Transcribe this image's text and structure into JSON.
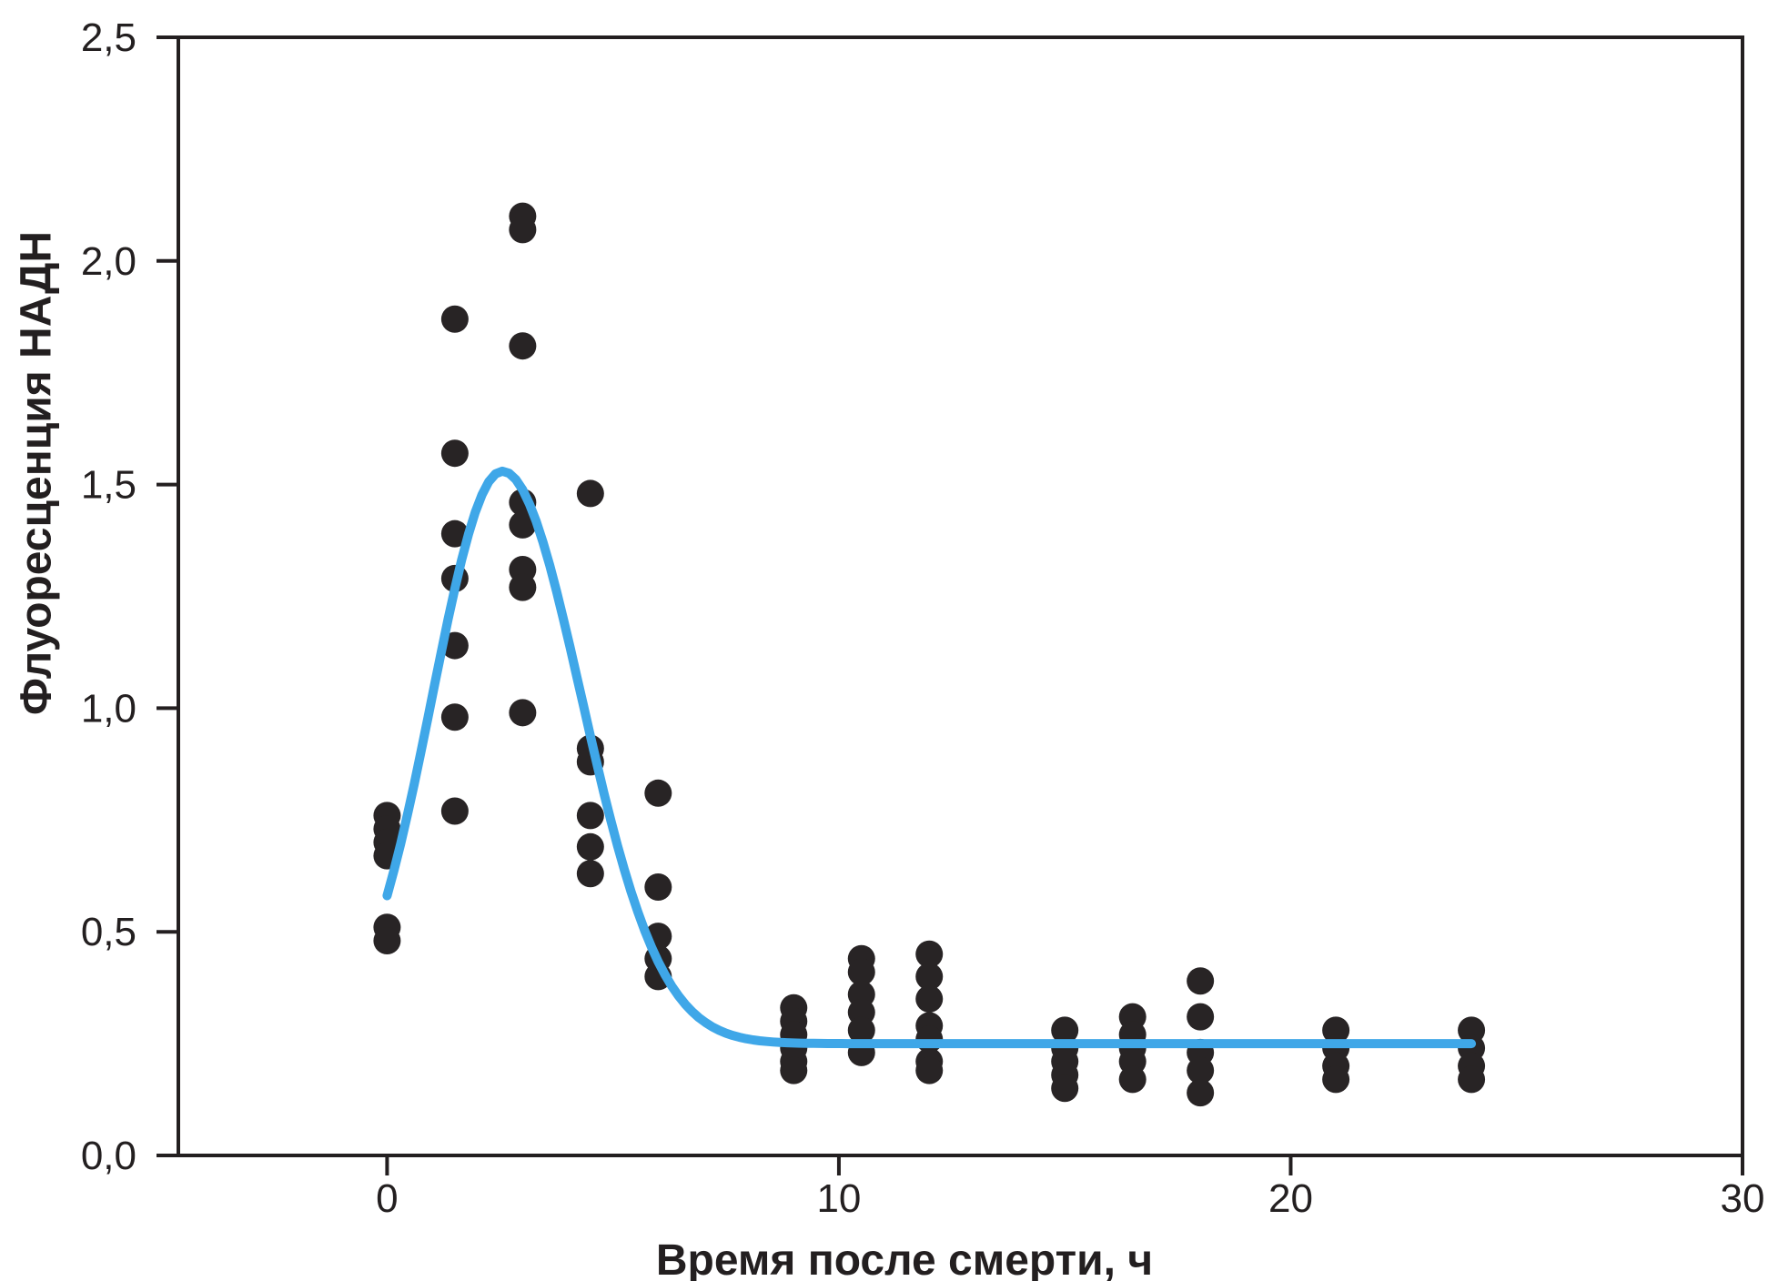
{
  "figure": {
    "background": "#ffffff",
    "colors": {
      "point": "#282425",
      "curve": "#3fa7e8",
      "axis": "#231f20",
      "text": "#231f20"
    }
  },
  "chart_data": {
    "type": "scatter",
    "title": "",
    "xlabel": "Время после смерти, ч",
    "ylabel": "Флуоресценция НАДН",
    "xlim": [
      -4.62,
      30
    ],
    "ylim": [
      0,
      2.5
    ],
    "grid": false,
    "legend": false,
    "decimal_separator": ",",
    "x_ticks": [
      {
        "v": 0,
        "label": "0"
      },
      {
        "v": 10,
        "label": "10"
      },
      {
        "v": 20,
        "label": "20"
      },
      {
        "v": 30,
        "label": "30"
      }
    ],
    "y_ticks": [
      {
        "v": 0.0,
        "label": "0,0"
      },
      {
        "v": 0.5,
        "label": "0,5"
      },
      {
        "v": 1.0,
        "label": "1,0"
      },
      {
        "v": 1.5,
        "label": "1,5"
      },
      {
        "v": 2.0,
        "label": "2,0"
      },
      {
        "v": 2.5,
        "label": "2,5"
      }
    ],
    "marker_radius": 15,
    "clusters": [
      {
        "t": 0,
        "values": [
          0.76,
          0.73,
          0.7,
          0.67,
          0.51,
          0.48
        ]
      },
      {
        "t": 1.5,
        "values": [
          1.87,
          1.57,
          1.39,
          1.29,
          1.14,
          0.98,
          0.77
        ]
      },
      {
        "t": 3,
        "values": [
          2.1,
          2.07,
          1.81,
          1.46,
          1.41,
          1.31,
          1.27,
          0.99
        ]
      },
      {
        "t": 4.5,
        "values": [
          1.48,
          0.91,
          0.88,
          0.76,
          0.69,
          0.63
        ]
      },
      {
        "t": 6,
        "values": [
          0.81,
          0.6,
          0.49,
          0.44,
          0.4
        ]
      },
      {
        "t": 9,
        "values": [
          0.33,
          0.3,
          0.27,
          0.24,
          0.21,
          0.19
        ]
      },
      {
        "t": 10.5,
        "values": [
          0.44,
          0.41,
          0.36,
          0.32,
          0.28,
          0.23
        ]
      },
      {
        "t": 12,
        "values": [
          0.45,
          0.4,
          0.35,
          0.29,
          0.26,
          0.21,
          0.19
        ]
      },
      {
        "t": 15,
        "values": [
          0.28,
          0.24,
          0.21,
          0.18,
          0.15
        ]
      },
      {
        "t": 16.5,
        "values": [
          0.31,
          0.27,
          0.24,
          0.21,
          0.17
        ]
      },
      {
        "t": 18,
        "values": [
          0.39,
          0.31,
          0.23,
          0.19,
          0.14
        ]
      },
      {
        "t": 21,
        "values": [
          0.28,
          0.24,
          0.2,
          0.17
        ]
      },
      {
        "t": 24,
        "values": [
          0.28,
          0.24,
          0.2,
          0.17
        ]
      }
    ],
    "fit": {
      "shape": "peak-with-plateau",
      "baseline": 0.25,
      "amplitude": 1.28,
      "peak_value": 1.53,
      "mu": 2.55,
      "sigma_left": 1.55,
      "sigma_right": 1.75,
      "domain": [
        0,
        24
      ],
      "start_value": 0.58,
      "line_width": 10
    }
  }
}
